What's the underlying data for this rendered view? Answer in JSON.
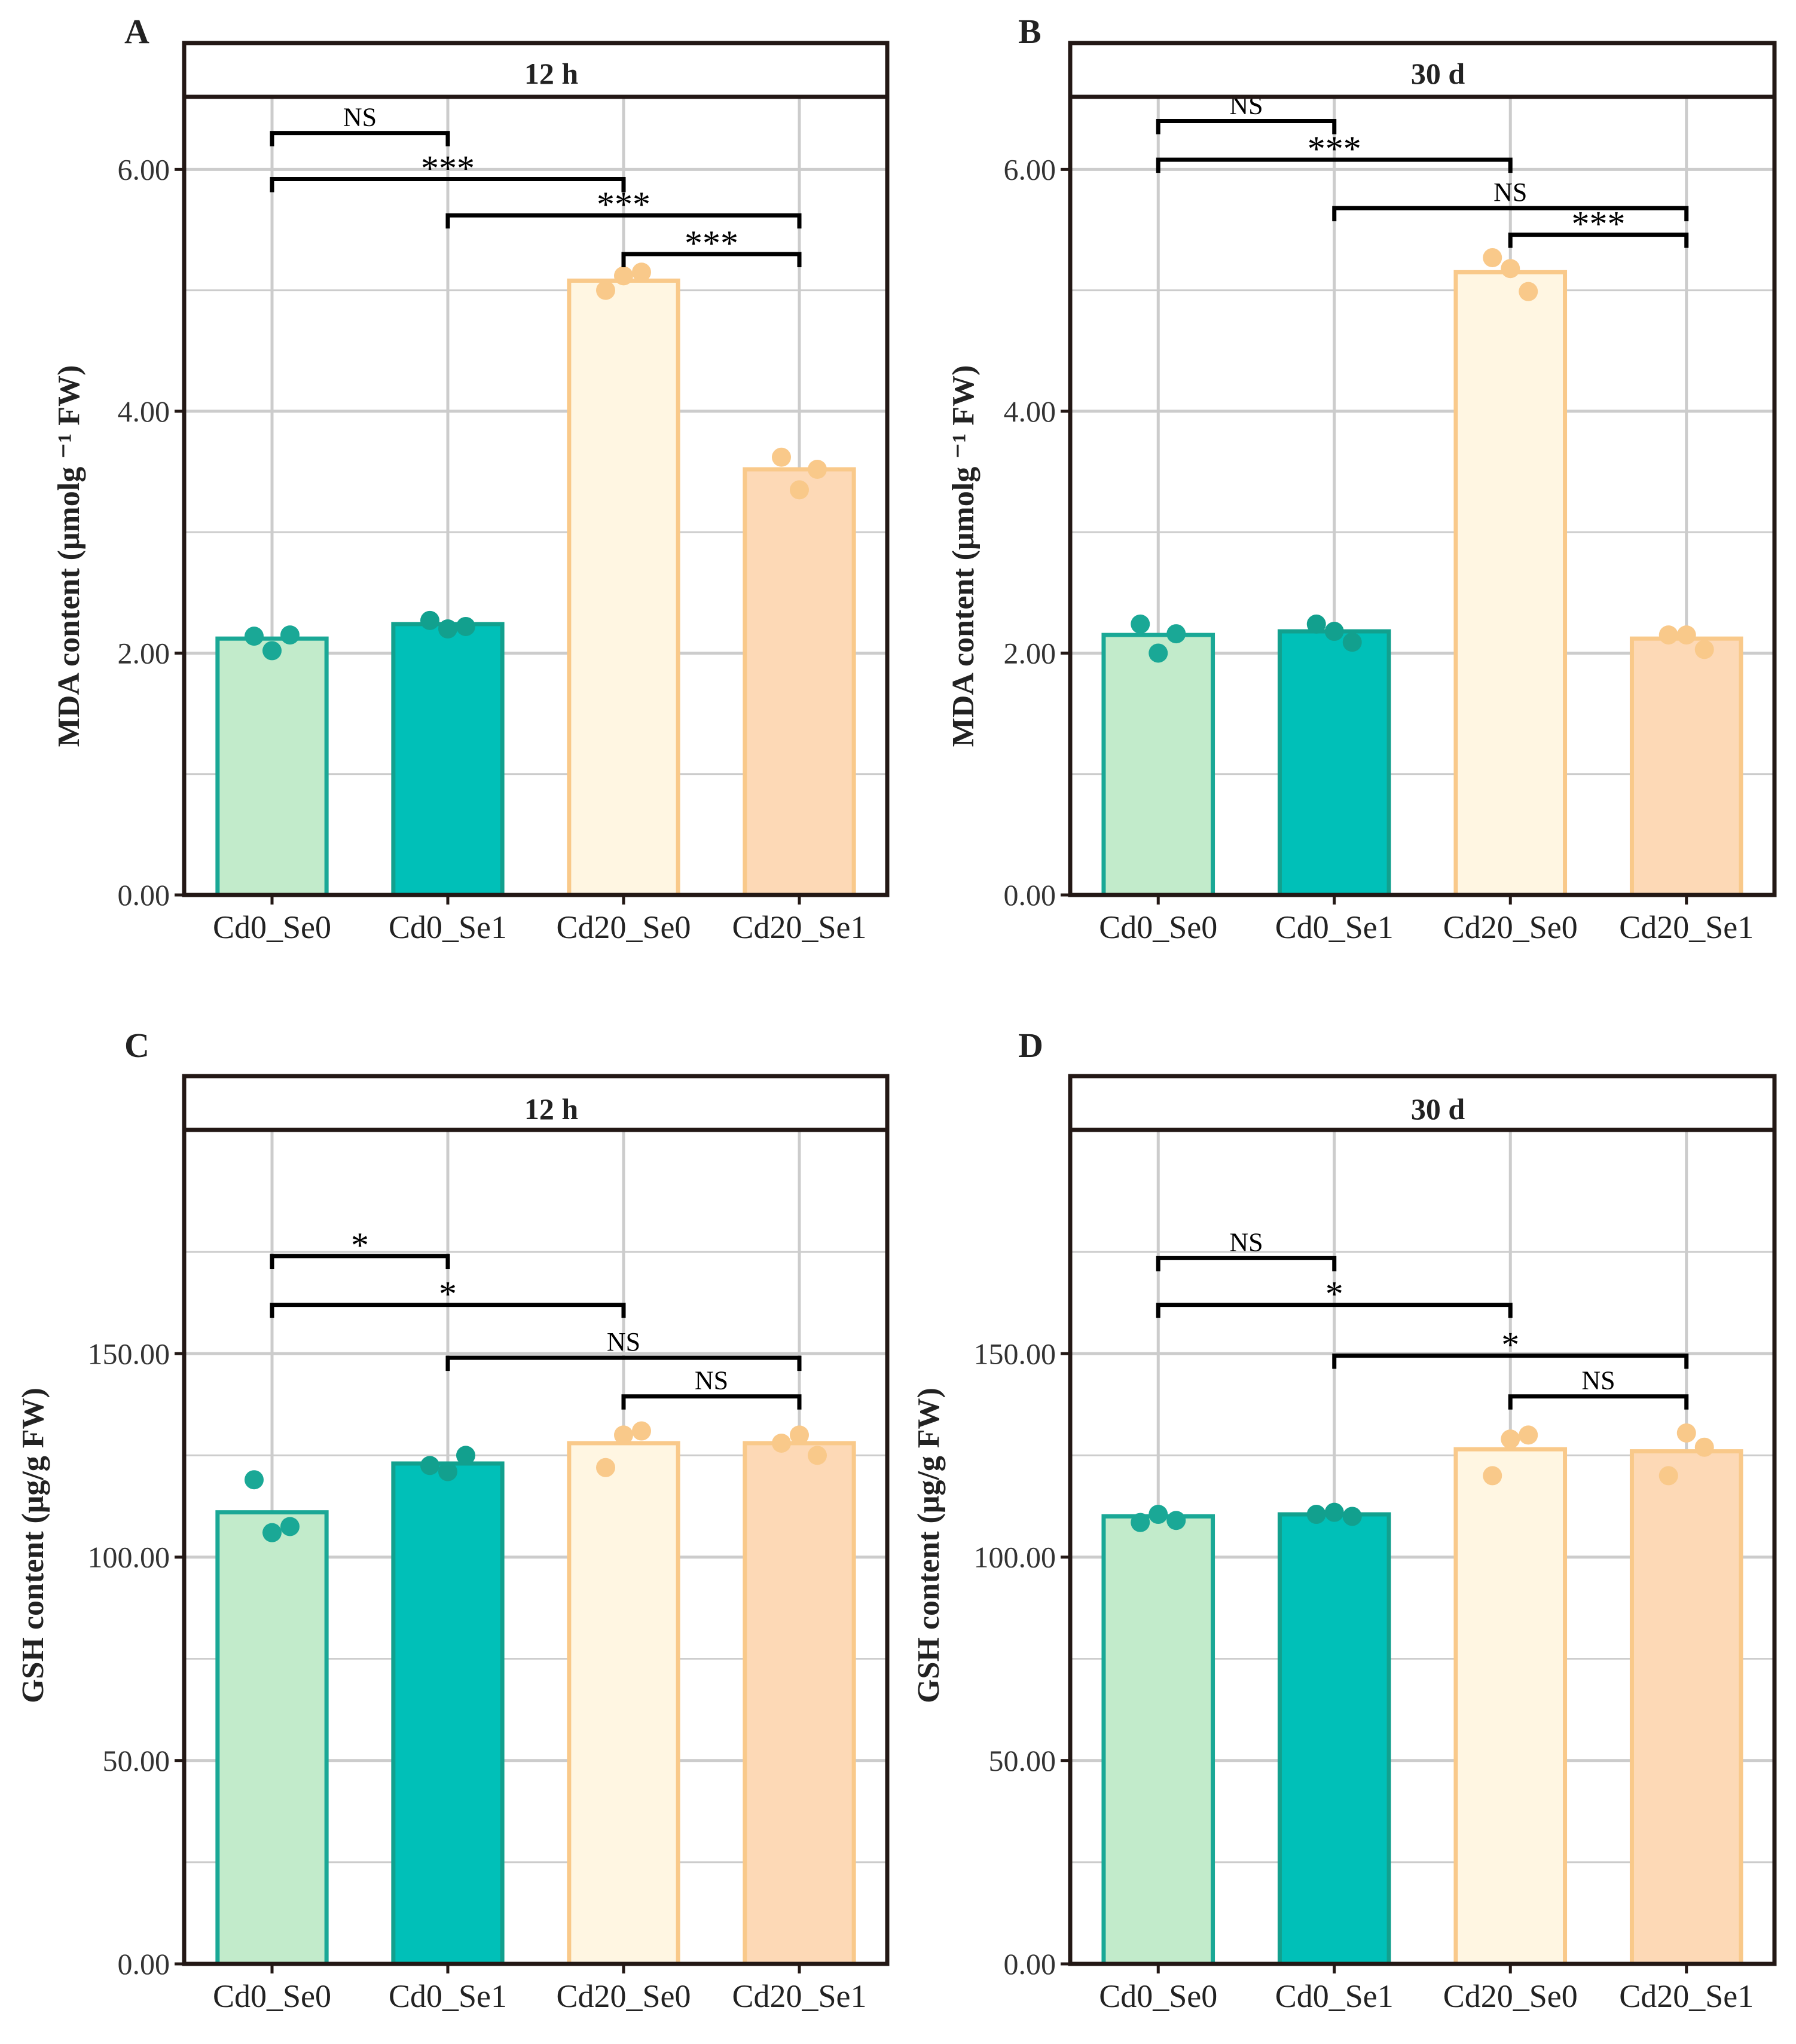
{
  "colors": {
    "frame": "#231815",
    "grid": "#cccccc",
    "text": "#222222",
    "Cd0_Se0_fill": "#c2ebcb",
    "Cd0_Se0_stroke": "#1aa896",
    "Cd0_Se0_dot": "#1aa896",
    "Cd0_Se1_fill": "#00c0b8",
    "Cd0_Se1_stroke": "#12a08e",
    "Cd0_Se1_dot": "#12a08e",
    "Cd20_Se0_fill": "#fff6e2",
    "Cd20_Se0_stroke": "#f9c98a",
    "Cd20_Se0_dot": "#f9c98a",
    "Cd20_Se1_fill": "#fdd9b6",
    "Cd20_Se1_stroke": "#f9c98a",
    "Cd20_Se1_dot": "#f9c98a"
  },
  "chart_data": [
    {
      "panel": "A",
      "strip": "12 h",
      "type": "bar",
      "ylabel": "MDA content (μmolg ⁻¹ FW)",
      "ylim": [
        0,
        6.6
      ],
      "yticks": [
        0,
        2,
        4,
        6
      ],
      "ytick_labels": [
        "0.00",
        "2.00",
        "4.00",
        "6.00"
      ],
      "categories": [
        "Cd0_Se0",
        "Cd0_Se1",
        "Cd20_Se0",
        "Cd20_Se1"
      ],
      "values": [
        2.12,
        2.24,
        5.08,
        3.52
      ],
      "points": [
        [
          2.14,
          2.02,
          2.15
        ],
        [
          2.27,
          2.2,
          2.22
        ],
        [
          5.0,
          5.12,
          5.15
        ],
        [
          3.62,
          3.35,
          3.52
        ]
      ],
      "comparisons": [
        {
          "from": 0,
          "to": 1,
          "y": 6.3,
          "label": "NS"
        },
        {
          "from": 0,
          "to": 2,
          "y": 5.92,
          "label": "***"
        },
        {
          "from": 1,
          "to": 3,
          "y": 5.62,
          "label": "***"
        },
        {
          "from": 2,
          "to": 3,
          "y": 5.3,
          "label": "***"
        }
      ]
    },
    {
      "panel": "B",
      "strip": "30 d",
      "type": "bar",
      "ylabel": "MDA content (μmolg ⁻¹ FW)",
      "ylim": [
        0,
        6.6
      ],
      "yticks": [
        0,
        2,
        4,
        6
      ],
      "ytick_labels": [
        "0.00",
        "2.00",
        "4.00",
        "6.00"
      ],
      "categories": [
        "Cd0_Se0",
        "Cd0_Se1",
        "Cd20_Se0",
        "Cd20_Se1"
      ],
      "values": [
        2.15,
        2.18,
        5.15,
        2.12
      ],
      "points": [
        [
          2.24,
          2.0,
          2.16
        ],
        [
          2.24,
          2.18,
          2.09
        ],
        [
          5.27,
          5.18,
          4.99
        ],
        [
          2.15,
          2.15,
          2.03
        ]
      ],
      "comparisons": [
        {
          "from": 0,
          "to": 1,
          "y": 6.4,
          "label": "NS"
        },
        {
          "from": 0,
          "to": 2,
          "y": 6.08,
          "label": "***"
        },
        {
          "from": 1,
          "to": 3,
          "y": 5.68,
          "label": "NS"
        },
        {
          "from": 2,
          "to": 3,
          "y": 5.46,
          "label": "***"
        }
      ]
    },
    {
      "panel": "C",
      "strip": "12 h",
      "type": "bar",
      "ylabel": "GSH content (μg/g FW)",
      "ylim": [
        0,
        205
      ],
      "yticks": [
        0,
        50,
        100,
        150
      ],
      "ytick_labels": [
        "0.00",
        "50.00",
        "100.00",
        "150.00"
      ],
      "categories": [
        "Cd0_Se0",
        "Cd0_Se1",
        "Cd20_Se0",
        "Cd20_Se1"
      ],
      "values": [
        111,
        123,
        128,
        128
      ],
      "points": [
        [
          119,
          106,
          107.5
        ],
        [
          122.5,
          121,
          125
        ],
        [
          122,
          130,
          131
        ],
        [
          128,
          130,
          125
        ]
      ],
      "comparisons": [
        {
          "from": 0,
          "to": 1,
          "y": 174,
          "label": "*"
        },
        {
          "from": 0,
          "to": 2,
          "y": 162,
          "label": "*"
        },
        {
          "from": 1,
          "to": 3,
          "y": 149,
          "label": "NS"
        },
        {
          "from": 2,
          "to": 3,
          "y": 139.5,
          "label": "NS"
        }
      ]
    },
    {
      "panel": "D",
      "strip": "30 d",
      "type": "bar",
      "ylabel": "GSH content (μg/g FW)",
      "ylim": [
        0,
        205
      ],
      "yticks": [
        0,
        50,
        100,
        150
      ],
      "ytick_labels": [
        "0.00",
        "50.00",
        "100.00",
        "150.00"
      ],
      "categories": [
        "Cd0_Se0",
        "Cd0_Se1",
        "Cd20_Se0",
        "Cd20_Se1"
      ],
      "values": [
        110,
        110.5,
        126.5,
        126
      ],
      "points": [
        [
          108.5,
          110.5,
          109
        ],
        [
          110.5,
          111,
          110
        ],
        [
          120,
          129,
          130
        ],
        [
          120,
          130.5,
          127
        ]
      ],
      "comparisons": [
        {
          "from": 0,
          "to": 1,
          "y": 173.5,
          "label": "NS"
        },
        {
          "from": 0,
          "to": 2,
          "y": 162,
          "label": "*"
        },
        {
          "from": 1,
          "to": 3,
          "y": 149.5,
          "label": "*"
        },
        {
          "from": 2,
          "to": 3,
          "y": 139.5,
          "label": "NS"
        }
      ]
    }
  ]
}
